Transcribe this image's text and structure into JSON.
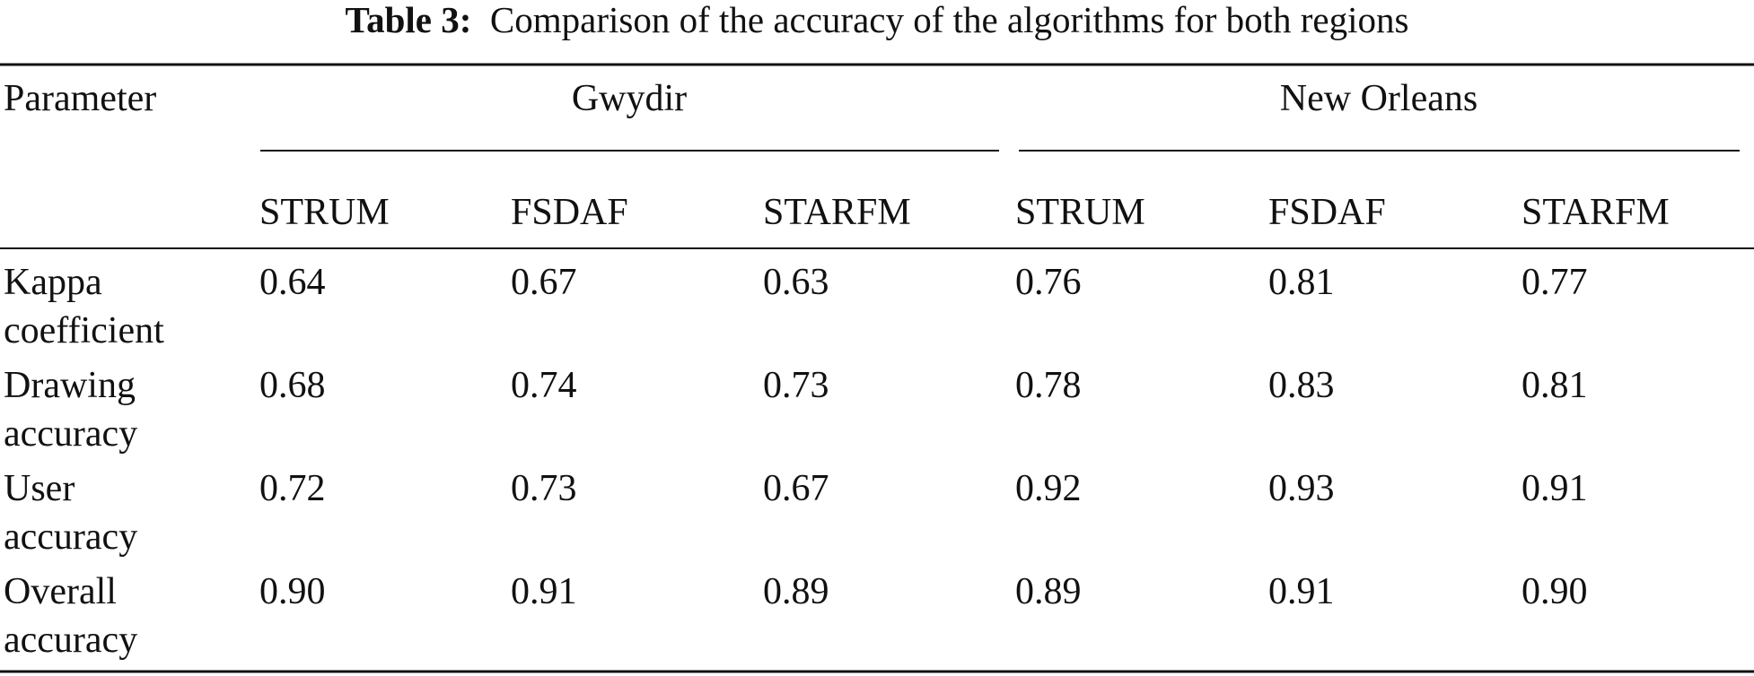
{
  "table": {
    "caption_label": "Table 3:",
    "caption": "Comparison of the accuracy of the algorithms for both regions",
    "parameter_header": "Parameter",
    "groups": [
      "Gwydir",
      "New Orleans"
    ],
    "subheaders": [
      "STRUM",
      "FSDAF",
      "STARFM",
      "STRUM",
      "FSDAF",
      "STARFM"
    ],
    "rows": [
      [
        "Kappa coefficient",
        "0.64",
        "0.67",
        "0.63",
        "0.76",
        "0.81",
        "0.77"
      ],
      [
        "Drawing accuracy",
        "0.68",
        "0.74",
        "0.73",
        "0.78",
        "0.83",
        "0.81"
      ],
      [
        "User accuracy",
        "0.72",
        "0.73",
        "0.67",
        "0.92",
        "0.93",
        "0.91"
      ],
      [
        "Overall accuracy",
        "0.90",
        "0.91",
        "0.89",
        "0.89",
        "0.91",
        "0.90"
      ]
    ]
  }
}
